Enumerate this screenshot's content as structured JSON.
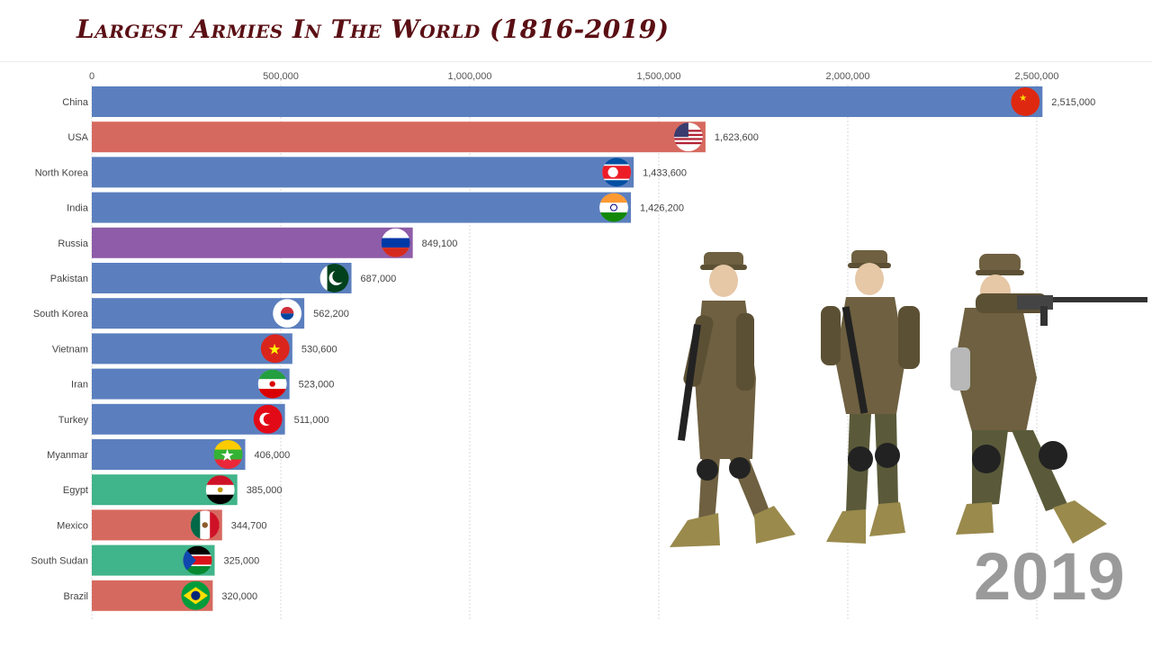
{
  "title": "Largest Armies In The World  (1816-2019)",
  "year": "2019",
  "chart_data": {
    "type": "bar",
    "orientation": "horizontal",
    "title": "Largest Armies In The World  (1816-2019)",
    "xlim": [
      0,
      2750000
    ],
    "x_ticks": [
      "0",
      "500,000",
      "1,000,000",
      "1,500,000",
      "2,000,000",
      "2,500,000"
    ],
    "x_tick_values": [
      0,
      500000,
      1000000,
      1500000,
      2000000,
      2500000
    ],
    "grid": true,
    "categories": [
      "China",
      "USA",
      "North Korea",
      "India",
      "Russia",
      "Pakistan",
      "South Korea",
      "Vietnam",
      "Iran",
      "Turkey",
      "Myanmar",
      "Egypt",
      "Mexico",
      "South Sudan",
      "Brazil"
    ],
    "values": [
      2515000,
      1623600,
      1433600,
      1426200,
      849100,
      687000,
      562200,
      530600,
      523000,
      511000,
      406000,
      385000,
      344700,
      325000,
      320000
    ],
    "value_labels": [
      "2,515,000",
      "1,623,600",
      "1,433,600",
      "1,426,200",
      "849,100",
      "687,000",
      "562,200",
      "530,600",
      "523,000",
      "511,000",
      "406,000",
      "385,000",
      "344,700",
      "325,000",
      "320,000"
    ],
    "bar_colors": [
      "#5b7fbe",
      "#d6695f",
      "#5b7fbe",
      "#5b7fbe",
      "#8e5ca8",
      "#5b7fbe",
      "#5b7fbe",
      "#5b7fbe",
      "#5b7fbe",
      "#5b7fbe",
      "#5b7fbe",
      "#40b48a",
      "#d6695f",
      "#40b48a",
      "#d6695f"
    ],
    "flags": [
      "china-flag",
      "usa-flag",
      "north-korea-flag",
      "india-flag",
      "russia-flag",
      "pakistan-flag",
      "south-korea-flag",
      "vietnam-flag",
      "iran-flag",
      "turkey-flag",
      "myanmar-flag",
      "egypt-flag",
      "mexico-flag",
      "south-sudan-flag",
      "brazil-flag"
    ]
  },
  "colors": {
    "title": "#5a0f14",
    "year": "#9a9a9a",
    "grid": "#d9d9d9",
    "uniform": "#6e6040",
    "boots": "#9a8a4c"
  }
}
